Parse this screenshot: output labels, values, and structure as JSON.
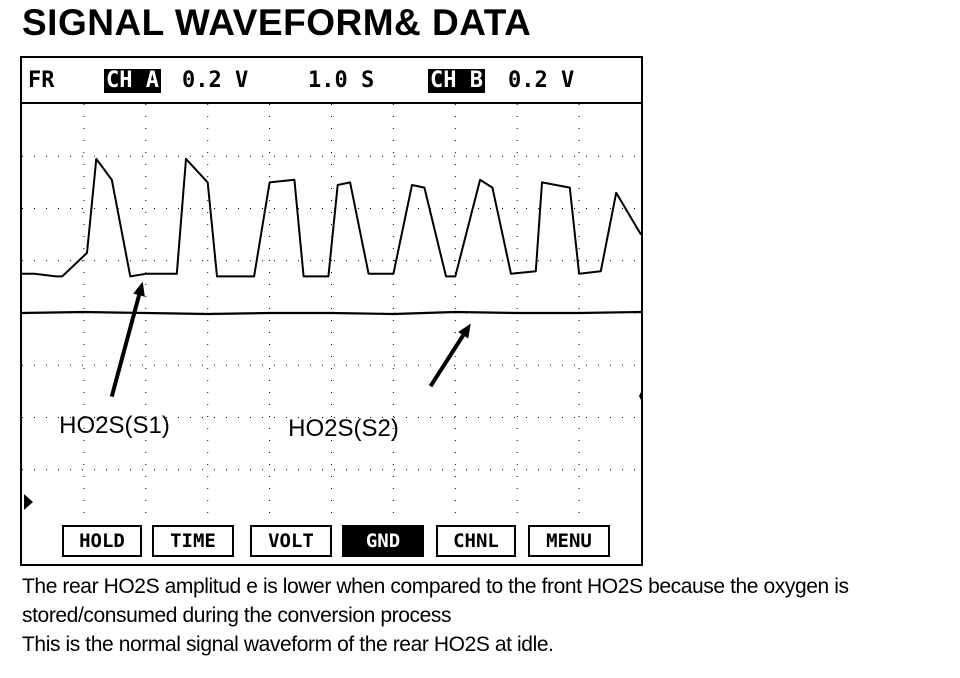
{
  "page": {
    "title": "SIGNAL WAVEFORM& DATA",
    "caption_lines": [
      "The rear HO2S amplitud e is lower when compared to the front  HO2S because the oxygen is",
      "stored/consumed during the conversion process",
      "This is the normal signal waveform of the rear HO2S at idle."
    ]
  },
  "scope": {
    "mode": "FR",
    "ch_a_label": "CH A",
    "ch_a_scale": "0.2 V",
    "timebase": "1.0 S",
    "ch_b_label": "CH B",
    "ch_b_scale": "0.2 V",
    "softkeys": [
      "HOLD",
      "TIME",
      "VOLT",
      "GND",
      "CHNL",
      "MENU"
    ],
    "active_softkey": "GND",
    "annotations": [
      "HO2S(S1)",
      "HO2S(S2)"
    ],
    "trace_color": "#000000",
    "grid_color": "#000000"
  },
  "chart_data": {
    "type": "line",
    "title": "",
    "xlabel": "",
    "ylabel": "",
    "x_unit_per_division": "1.0 S",
    "y_unit_per_division": "0.2 V",
    "grid": true,
    "xlim": [
      0,
      10
    ],
    "ylim": [
      0,
      8
    ],
    "series": [
      {
        "name": "HO2S(S1)",
        "x": [
          0,
          0.2,
          0.55,
          0.65,
          1.05,
          1.2,
          1.45,
          1.75,
          2.0,
          2.5,
          2.65,
          3.0,
          3.15,
          3.5,
          3.75,
          4.0,
          4.4,
          4.55,
          4.95,
          5.1,
          5.3,
          5.6,
          6.0,
          6.3,
          6.5,
          6.85,
          7.0,
          7.4,
          7.6,
          7.9,
          8.3,
          8.4,
          8.85,
          9.0,
          9.35,
          9.6,
          10.0
        ],
        "y": [
          4.75,
          4.75,
          4.7,
          4.7,
          5.15,
          6.95,
          6.55,
          4.7,
          4.75,
          4.75,
          6.95,
          6.5,
          4.7,
          4.7,
          4.7,
          6.5,
          6.55,
          4.7,
          4.7,
          6.45,
          6.5,
          4.75,
          4.75,
          6.45,
          6.4,
          4.7,
          4.7,
          6.55,
          6.4,
          4.75,
          4.8,
          6.5,
          6.4,
          4.75,
          4.8,
          6.3,
          5.5
        ]
      },
      {
        "name": "HO2S(S2)",
        "x": [
          0,
          1.0,
          2.0,
          3.0,
          4.0,
          5.0,
          6.0,
          7.0,
          8.0,
          9.0,
          10.0
        ],
        "y": [
          4.0,
          4.02,
          4.0,
          3.98,
          4.0,
          4.0,
          3.98,
          4.02,
          4.0,
          4.0,
          4.02
        ]
      }
    ]
  }
}
